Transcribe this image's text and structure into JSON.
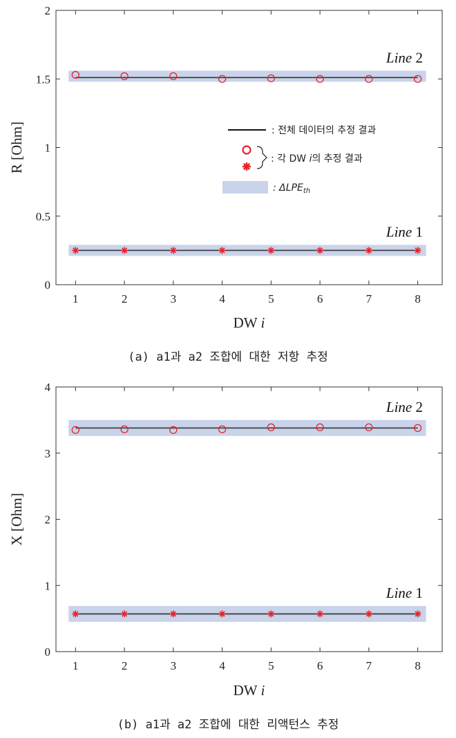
{
  "colors": {
    "band": "#c9d3ea",
    "line": "#404040",
    "marker": "#e8212a",
    "axis": "#333333"
  },
  "chart_data": [
    {
      "type": "line",
      "caption": "(a) a1과 a2 조합에 대한 저항 추정",
      "xlabel": "DW i",
      "ylabel": "R [Ohm]",
      "xlim": [
        0.6,
        8.5
      ],
      "ylim": [
        0,
        2
      ],
      "xticks": [
        "1",
        "2",
        "3",
        "4",
        "5",
        "6",
        "7",
        "8"
      ],
      "yticks": [
        "0",
        "0.5",
        "1",
        "1.5",
        "2"
      ],
      "grid": false,
      "x": [
        1,
        2,
        3,
        4,
        5,
        6,
        7,
        8
      ],
      "series": [
        {
          "name": "Line 2",
          "marker": "circle",
          "fit": 1.51,
          "band": [
            1.48,
            1.56
          ],
          "values": [
            1.53,
            1.52,
            1.52,
            1.5,
            1.505,
            1.5,
            1.5,
            1.5
          ]
        },
        {
          "name": "Line 1",
          "marker": "star",
          "fit": 0.25,
          "band": [
            0.21,
            0.29
          ],
          "values": [
            0.25,
            0.25,
            0.25,
            0.25,
            0.25,
            0.25,
            0.25,
            0.25
          ]
        }
      ],
      "legend": {
        "placement": "right",
        "line_label": ": 전체 데이터의 추정 결과",
        "marker_label": ": 각 DW i의 추정 결과",
        "band_label": ": ΔLPE_th"
      }
    },
    {
      "type": "line",
      "caption": "(b) a1과 a2 조합에 대한 리액턴스 추정",
      "xlabel": "DW i",
      "ylabel": "X [Ohm]",
      "xlim": [
        0.6,
        8.5
      ],
      "ylim": [
        0,
        4
      ],
      "xticks": [
        "1",
        "2",
        "3",
        "4",
        "5",
        "6",
        "7",
        "8"
      ],
      "yticks": [
        "0",
        "1",
        "2",
        "3",
        "4"
      ],
      "grid": false,
      "x": [
        1,
        2,
        3,
        4,
        5,
        6,
        7,
        8
      ],
      "series": [
        {
          "name": "Line 2",
          "marker": "circle",
          "fit": 3.38,
          "band": [
            3.26,
            3.5
          ],
          "values": [
            3.35,
            3.36,
            3.35,
            3.36,
            3.39,
            3.39,
            3.39,
            3.38
          ]
        },
        {
          "name": "Line 1",
          "marker": "star",
          "fit": 0.57,
          "band": [
            0.45,
            0.69
          ],
          "values": [
            0.57,
            0.57,
            0.57,
            0.57,
            0.57,
            0.57,
            0.57,
            0.57
          ]
        }
      ]
    }
  ]
}
